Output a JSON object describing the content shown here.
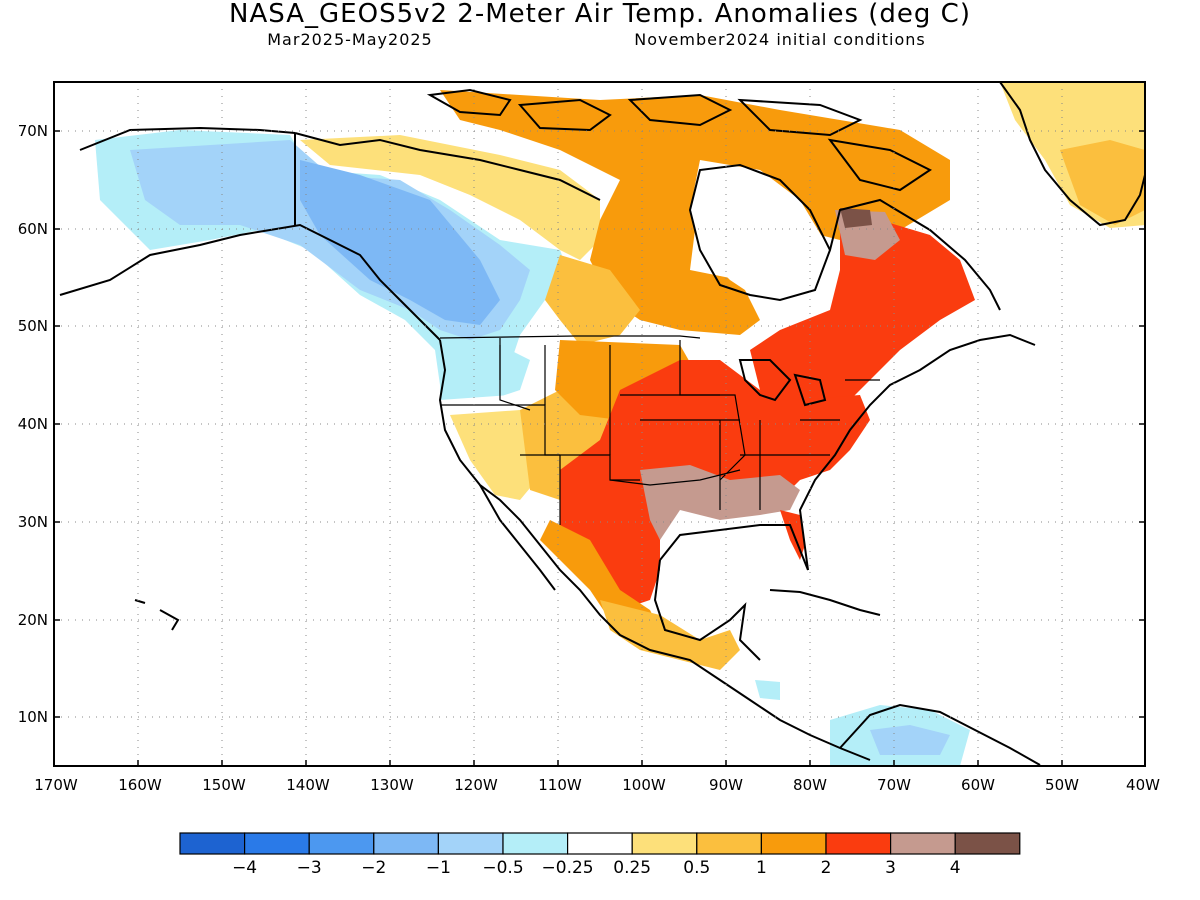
{
  "title": "NASA_GEOS5v2 2-Meter Air Temp. Anomalies (deg C)",
  "subtitle_left": "Mar2025-May2025",
  "subtitle_right": "November2024 initial conditions",
  "lat_labels": [
    "70N",
    "60N",
    "50N",
    "40N",
    "30N",
    "20N",
    "10N"
  ],
  "lon_labels": [
    "170W",
    "160W",
    "150W",
    "140W",
    "130W",
    "120W",
    "110W",
    "100W",
    "90W",
    "80W",
    "70W",
    "60W",
    "50W",
    "40W"
  ],
  "colorbar": {
    "colors": [
      "#1d63d1",
      "#2a7ae8",
      "#4c98f0",
      "#7db8f5",
      "#a3d3f9",
      "#b4eef8",
      "#ffffff",
      "#fde07a",
      "#fbbf3e",
      "#f89b0c",
      "#fa3c0f",
      "#c59a8f",
      "#7b5247"
    ],
    "labels": [
      "-4",
      "-3",
      "-2",
      "-1",
      "-0.5",
      "-0.25",
      "0.25",
      "0.5",
      "1",
      "2",
      "3",
      "4"
    ]
  }
}
